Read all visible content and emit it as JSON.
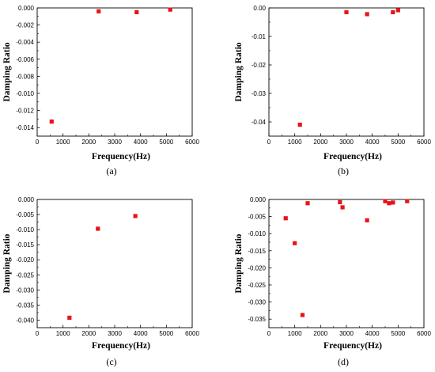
{
  "chart_data": [
    {
      "type": "scatter",
      "panel_label": "(a)",
      "xlabel": "Frequency(Hz)",
      "ylabel": "Damping Ratio",
      "xlim": [
        0,
        6000
      ],
      "ylim": [
        -0.015,
        0.0
      ],
      "x_ticks": [
        0,
        1000,
        2000,
        3000,
        4000,
        5000,
        6000
      ],
      "y_ticks": [
        0.0,
        -0.002,
        -0.004,
        -0.006,
        -0.008,
        -0.01,
        -0.012,
        -0.014
      ],
      "x_tick_labels": [
        "0",
        "1000",
        "2000",
        "3000",
        "4000",
        "5000",
        "6000"
      ],
      "y_tick_labels": [
        "0.000",
        "-0.002",
        "-0.004",
        "-0.006",
        "-0.008",
        "-0.010",
        "-0.012",
        "-0.014"
      ],
      "marker_color": "#e8141c",
      "points": [
        {
          "x": 560,
          "y": -0.0133
        },
        {
          "x": 2380,
          "y": -0.0004
        },
        {
          "x": 3850,
          "y": -0.0005
        },
        {
          "x": 5150,
          "y": -0.0002
        }
      ]
    },
    {
      "type": "scatter",
      "panel_label": "(b)",
      "xlabel": "Frequency(Hz)",
      "ylabel": "Damping Ratio",
      "xlim": [
        0,
        6000
      ],
      "ylim": [
        -0.045,
        0.0
      ],
      "x_ticks": [
        0,
        1000,
        2000,
        3000,
        4000,
        5000,
        6000
      ],
      "y_ticks": [
        0.0,
        -0.01,
        -0.02,
        -0.03,
        -0.04
      ],
      "x_tick_labels": [
        "0",
        "1000",
        "2000",
        "3000",
        "4000",
        "5000",
        "6000"
      ],
      "y_tick_labels": [
        "0.00",
        "-0.01",
        "-0.02",
        "-0.03",
        "-0.04"
      ],
      "marker_color": "#e8141c",
      "points": [
        {
          "x": 1200,
          "y": -0.041
        },
        {
          "x": 3000,
          "y": -0.0015
        },
        {
          "x": 3800,
          "y": -0.0022
        },
        {
          "x": 4800,
          "y": -0.0015
        },
        {
          "x": 5000,
          "y": -0.0008
        }
      ]
    },
    {
      "type": "scatter",
      "panel_label": "(c)",
      "xlabel": "Frequency(Hz)",
      "ylabel": "Damping Ratio",
      "xlim": [
        0,
        6000
      ],
      "ylim": [
        -0.0425,
        0.0
      ],
      "x_ticks": [
        0,
        1000,
        2000,
        3000,
        4000,
        5000,
        6000
      ],
      "y_ticks": [
        0.0,
        -0.005,
        -0.01,
        -0.015,
        -0.02,
        -0.025,
        -0.03,
        -0.035,
        -0.04
      ],
      "x_tick_labels": [
        "0",
        "1000",
        "2000",
        "3000",
        "4000",
        "5000",
        "6000"
      ],
      "y_tick_labels": [
        "0.000",
        "-0.005",
        "-0.010",
        "-0.015",
        "-0.020",
        "-0.025",
        "-0.030",
        "-0.035",
        "-0.040"
      ],
      "marker_color": "#e8141c",
      "points": [
        {
          "x": 1250,
          "y": -0.0392
        },
        {
          "x": 2350,
          "y": -0.0097
        },
        {
          "x": 3800,
          "y": -0.0055
        }
      ]
    },
    {
      "type": "scatter",
      "panel_label": "(d)",
      "xlabel": "Frequency(Hz)",
      "ylabel": "Damping Ratio",
      "xlim": [
        0,
        6000
      ],
      "ylim": [
        -0.0375,
        0.0
      ],
      "x_ticks": [
        0,
        1000,
        2000,
        3000,
        4000,
        5000,
        6000
      ],
      "y_ticks": [
        0.0,
        -0.005,
        -0.01,
        -0.015,
        -0.02,
        -0.025,
        -0.03,
        -0.035
      ],
      "x_tick_labels": [
        "0",
        "1000",
        "2000",
        "3000",
        "4000",
        "5000",
        "6000"
      ],
      "y_tick_labels": [
        "0.000",
        "-0.005",
        "-0.010",
        "-0.015",
        "-0.020",
        "-0.025",
        "-0.030",
        "-0.035"
      ],
      "marker_color": "#e8141c",
      "points": [
        {
          "x": 650,
          "y": -0.0055
        },
        {
          "x": 1000,
          "y": -0.0128
        },
        {
          "x": 1300,
          "y": -0.0338
        },
        {
          "x": 1500,
          "y": -0.0011
        },
        {
          "x": 2750,
          "y": -0.0008
        },
        {
          "x": 2850,
          "y": -0.0023
        },
        {
          "x": 3800,
          "y": -0.0061
        },
        {
          "x": 4500,
          "y": -0.0005
        },
        {
          "x": 4650,
          "y": -0.0011
        },
        {
          "x": 4800,
          "y": -0.0009
        },
        {
          "x": 5350,
          "y": -0.0005
        }
      ]
    }
  ]
}
